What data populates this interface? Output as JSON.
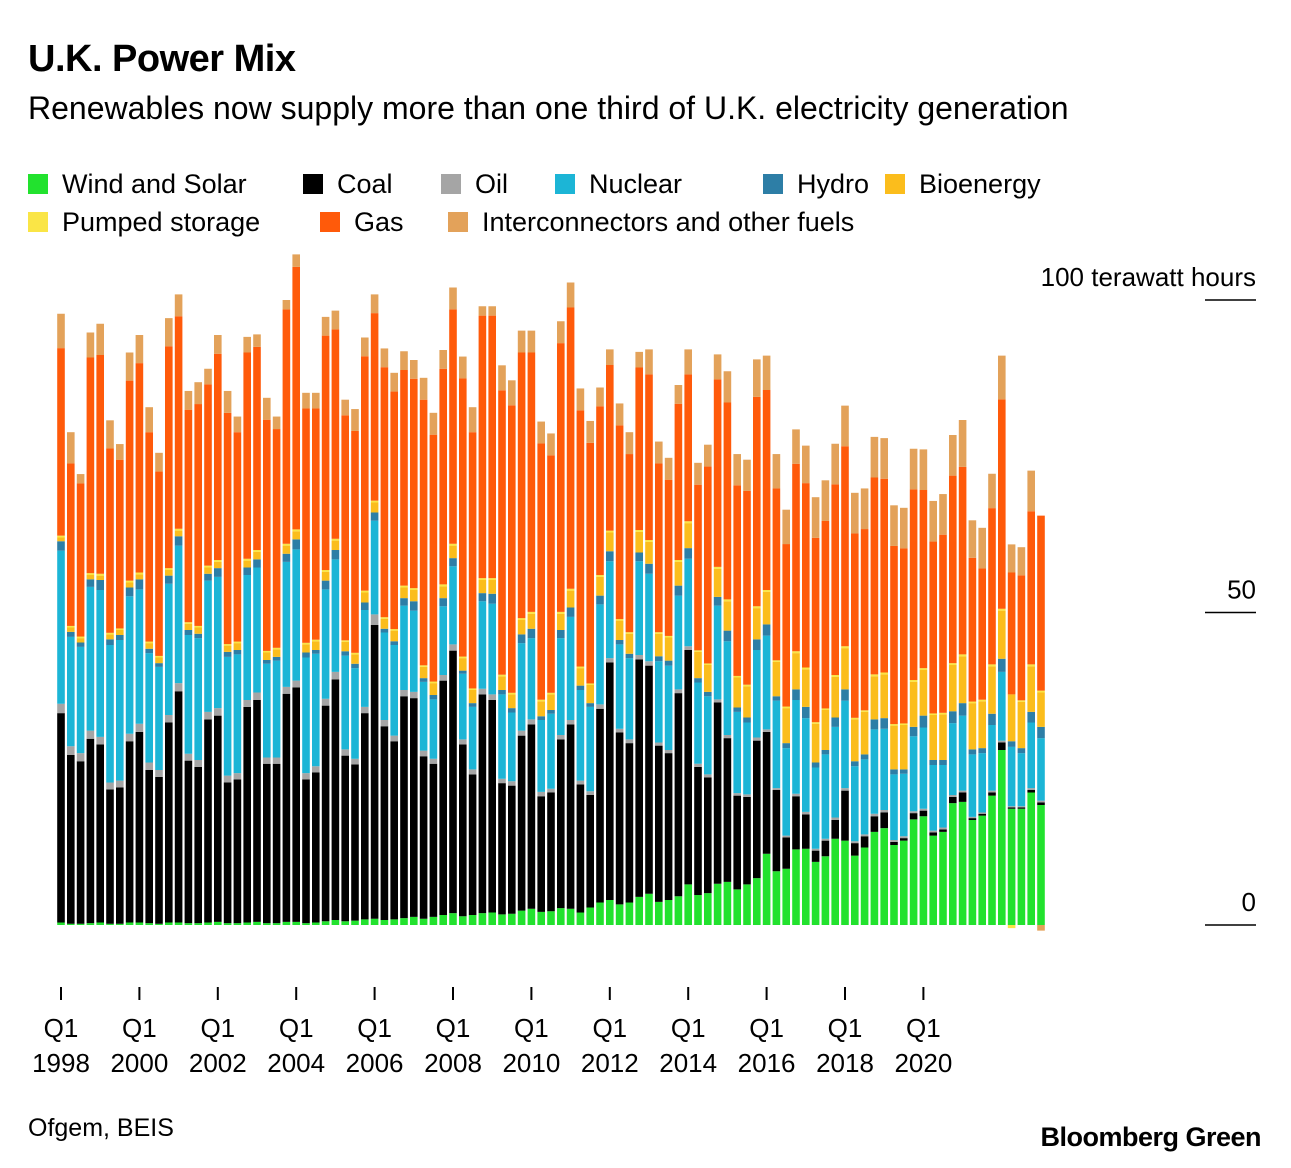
{
  "header": {
    "title": "U.K. Power Mix",
    "subtitle": "Renewables now supply more than one third of U.K. electricity generation"
  },
  "footer": {
    "source": "Ofgem, BEIS",
    "brand": "Bloomberg Green"
  },
  "colors": {
    "wind_solar": "#22e22e",
    "coal": "#000000",
    "oil": "#a5a5a5",
    "nuclear": "#1cb5d6",
    "hydro": "#2d7ea6",
    "bioenergy": "#fbbd1c",
    "pumped": "#fae546",
    "gas": "#ff5a0a",
    "interconnectors": "#e3a25a"
  },
  "chart_data": {
    "type": "bar",
    "stacked": true,
    "x_start": "1998 Q1",
    "x_tick_labels": [
      [
        "Q1",
        "1998"
      ],
      [
        "Q1",
        "2000"
      ],
      [
        "Q1",
        "2002"
      ],
      [
        "Q1",
        "2004"
      ],
      [
        "Q1",
        "2006"
      ],
      [
        "Q1",
        "2008"
      ],
      [
        "Q1",
        "2010"
      ],
      [
        "Q1",
        "2012"
      ],
      [
        "Q1",
        "2014"
      ],
      [
        "Q1",
        "2016"
      ],
      [
        "Q1",
        "2018"
      ],
      [
        "Q1",
        "2020"
      ]
    ],
    "y_ticks": [
      {
        "value": 100,
        "label": "100 terawatt hours"
      },
      {
        "value": 50,
        "label": "50"
      },
      {
        "value": 0,
        "label": "0"
      }
    ],
    "ylim": [
      -2,
      107
    ],
    "legend_position": "top",
    "legend": [
      [
        "Wind and Solar",
        "Coal",
        "Oil",
        "Nuclear",
        "Hydro",
        "Bioenergy"
      ],
      [
        "Pumped storage",
        "Gas",
        "Interconnectors and other fuels"
      ]
    ],
    "series": [
      {
        "name": "Wind and Solar",
        "color": "#22e22e",
        "values": [
          0.4,
          0.2,
          0.2,
          0.3,
          0.4,
          0.2,
          0.2,
          0.4,
          0.4,
          0.3,
          0.2,
          0.4,
          0.4,
          0.3,
          0.3,
          0.4,
          0.5,
          0.3,
          0.3,
          0.4,
          0.5,
          0.3,
          0.3,
          0.5,
          0.5,
          0.3,
          0.4,
          0.6,
          0.8,
          0.6,
          0.7,
          0.9,
          1.0,
          0.8,
          0.9,
          1.1,
          1.3,
          1.0,
          1.3,
          1.6,
          1.9,
          1.4,
          1.6,
          1.9,
          2.0,
          1.7,
          1.8,
          2.3,
          2.6,
          2.1,
          2.2,
          2.7,
          2.6,
          2.0,
          2.8,
          3.6,
          4.0,
          3.3,
          3.6,
          4.5,
          5.0,
          3.7,
          4.0,
          4.6,
          6.5,
          4.8,
          5.1,
          6.6,
          6.9,
          5.7,
          6.5,
          7.5,
          11.4,
          8.6,
          9.0,
          12.1,
          12.2,
          10.1,
          11.0,
          13.8,
          13.5,
          11.1,
          12.4,
          14.9,
          15.5,
          12.8,
          13.5,
          16.9,
          17.4,
          14.3,
          14.9,
          19.5,
          19.7,
          16.8,
          17.5,
          20.7,
          28.0,
          18.6,
          18.6,
          21.2,
          19.2
        ]
      },
      {
        "name": "Coal",
        "color": "#000000",
        "values": [
          33.5,
          27.0,
          26.0,
          29.5,
          28.5,
          21.5,
          21.8,
          29.0,
          30.5,
          24.5,
          23.5,
          32.0,
          37.0,
          26.0,
          25.0,
          32.5,
          33.0,
          22.5,
          23.0,
          34.5,
          35.5,
          25.5,
          25.5,
          36.5,
          37.5,
          23.0,
          24.0,
          34.5,
          38.5,
          26.5,
          25.0,
          33.0,
          47.0,
          31.0,
          28.5,
          35.5,
          35.0,
          26.0,
          24.5,
          37.5,
          42.0,
          27.5,
          22.5,
          35.0,
          34.0,
          21.0,
          20.5,
          28.0,
          29.5,
          18.5,
          19.0,
          27.0,
          29.5,
          20.5,
          18.0,
          31.0,
          38.0,
          27.5,
          25.5,
          38.0,
          36.5,
          25.0,
          23.5,
          32.5,
          37.5,
          20.5,
          18.5,
          29.0,
          23.0,
          15.0,
          14.0,
          22.0,
          19.5,
          13.0,
          5.0,
          8.5,
          5.5,
          1.8,
          2.5,
          3.0,
          8.0,
          2.0,
          1.8,
          2.5,
          2.5,
          0.5,
          0.4,
          1.0,
          0.9,
          0.5,
          0.4,
          1.0,
          1.5,
          0.3,
          0.3,
          0.5,
          1.2,
          0.2,
          0.2,
          0.4,
          0.4
        ]
      },
      {
        "name": "Oil",
        "color": "#a5a5a5",
        "values": [
          1.5,
          1.4,
          1.3,
          1.3,
          1.2,
          1.1,
          1.1,
          1.2,
          1.3,
          1.2,
          1.1,
          1.2,
          1.3,
          1.1,
          1.1,
          1.2,
          1.2,
          1.1,
          1.0,
          1.1,
          1.2,
          1.0,
          1.0,
          1.1,
          1.1,
          1.0,
          1.0,
          1.1,
          1.2,
          1.0,
          0.9,
          1.0,
          1.7,
          1.0,
          0.9,
          1.0,
          1.0,
          0.9,
          0.8,
          0.9,
          1.0,
          0.8,
          0.8,
          0.9,
          0.9,
          0.7,
          0.7,
          0.8,
          0.8,
          0.7,
          0.6,
          0.7,
          0.7,
          0.6,
          0.6,
          0.7,
          0.7,
          0.6,
          0.6,
          0.7,
          0.7,
          0.5,
          0.5,
          0.6,
          0.6,
          0.5,
          0.5,
          0.5,
          0.5,
          0.4,
          0.4,
          0.5,
          0.4,
          0.3,
          0.3,
          0.4,
          0.4,
          0.3,
          0.3,
          0.4,
          0.4,
          0.3,
          0.3,
          0.4,
          0.4,
          0.3,
          0.3,
          0.3,
          0.3,
          0.3,
          0.3,
          0.3,
          0.3,
          0.2,
          0.2,
          0.3,
          0.3,
          0.2,
          0.2,
          0.3,
          0.3
        ]
      },
      {
        "name": "Nuclear",
        "color": "#1cb5d6",
        "values": [
          24.5,
          17.5,
          17.0,
          23.0,
          23.5,
          22.0,
          22.5,
          22.0,
          21.5,
          17.5,
          16.5,
          21.0,
          22.0,
          19.0,
          19.5,
          21.0,
          21.0,
          19.0,
          19.0,
          20.0,
          20.0,
          15.0,
          15.5,
          20.0,
          21.0,
          18.5,
          18.0,
          17.5,
          18.0,
          15.0,
          14.5,
          15.5,
          15.0,
          14.0,
          14.5,
          13.5,
          13.0,
          11.0,
          9.5,
          11.0,
          12.5,
          10.5,
          10.0,
          14.0,
          14.5,
          13.5,
          11.0,
          14.0,
          13.0,
          11.5,
          12.0,
          15.5,
          16.5,
          14.5,
          13.5,
          16.0,
          15.5,
          13.5,
          13.0,
          15.0,
          14.0,
          13.0,
          13.5,
          15.0,
          14.0,
          13.0,
          12.5,
          15.0,
          15.0,
          13.0,
          11.5,
          14.0,
          15.0,
          14.0,
          14.0,
          15.0,
          15.0,
          13.0,
          13.5,
          14.5,
          14.0,
          12.0,
          12.0,
          13.5,
          13.0,
          10.5,
          10.0,
          12.0,
          13.0,
          10.5,
          10.0,
          11.5,
          12.0,
          10.0,
          9.5,
          10.5,
          11.0,
          9.5,
          8.5,
          10.5,
          10.0
        ]
      },
      {
        "name": "Hydro",
        "color": "#2d7ea6",
        "values": [
          1.5,
          0.8,
          0.7,
          1.2,
          1.6,
          0.9,
          0.8,
          1.4,
          1.6,
          0.7,
          0.6,
          1.3,
          1.5,
          0.8,
          0.7,
          1.1,
          1.4,
          0.8,
          0.7,
          1.2,
          1.3,
          0.6,
          0.6,
          1.3,
          1.6,
          0.8,
          0.6,
          1.4,
          1.5,
          0.7,
          0.7,
          1.2,
          1.3,
          0.6,
          0.6,
          1.2,
          1.5,
          0.6,
          0.7,
          1.3,
          1.3,
          0.5,
          0.6,
          1.3,
          1.6,
          0.7,
          0.7,
          1.4,
          1.5,
          0.6,
          0.6,
          1.3,
          1.5,
          0.7,
          0.6,
          1.4,
          1.6,
          0.7,
          0.7,
          1.4,
          1.6,
          0.8,
          0.8,
          1.6,
          1.7,
          0.7,
          0.7,
          1.4,
          1.7,
          0.7,
          0.8,
          1.7,
          1.8,
          0.7,
          0.8,
          1.7,
          1.8,
          0.8,
          0.7,
          1.5,
          1.8,
          0.8,
          0.8,
          1.6,
          1.7,
          0.8,
          0.7,
          1.5,
          1.9,
          0.8,
          0.8,
          1.9,
          2.0,
          0.8,
          0.8,
          1.8,
          2.1,
          0.9,
          0.8,
          1.7,
          1.8
        ]
      },
      {
        "name": "Bioenergy",
        "color": "#fbbd1c",
        "values": [
          0.6,
          0.7,
          0.7,
          0.7,
          0.7,
          0.8,
          0.8,
          0.8,
          0.8,
          0.9,
          0.9,
          0.9,
          0.9,
          1.0,
          1.0,
          1.0,
          1.0,
          1.0,
          1.1,
          1.1,
          1.2,
          1.2,
          1.2,
          1.3,
          1.3,
          1.3,
          1.4,
          1.4,
          1.5,
          1.5,
          1.5,
          1.6,
          1.6,
          1.6,
          1.7,
          1.7,
          1.8,
          1.8,
          1.9,
          1.9,
          2.0,
          2.0,
          2.1,
          2.1,
          2.2,
          2.2,
          2.2,
          2.3,
          2.4,
          2.4,
          2.5,
          2.6,
          2.7,
          2.8,
          2.9,
          3.0,
          3.0,
          3.1,
          3.2,
          3.3,
          3.5,
          3.6,
          3.7,
          3.8,
          4.0,
          4.2,
          4.3,
          4.5,
          4.7,
          4.8,
          5.0,
          5.0,
          5.2,
          5.5,
          5.6,
          5.8,
          6.0,
          6.2,
          6.4,
          6.5,
          6.6,
          6.7,
          6.8,
          6.9,
          7.0,
          7.0,
          7.1,
          7.2,
          7.3,
          7.2,
          7.3,
          7.4,
          7.5,
          7.4,
          7.5,
          7.6,
          7.7,
          7.5,
          7.4,
          7.3,
          5.5
        ]
      },
      {
        "name": "Pumped storage",
        "color": "#fae546",
        "values": [
          0.3,
          0.25,
          0.25,
          0.3,
          0.3,
          0.25,
          0.25,
          0.3,
          0.3,
          0.25,
          0.25,
          0.3,
          0.3,
          0.25,
          0.25,
          0.3,
          0.3,
          0.25,
          0.25,
          0.3,
          0.3,
          0.25,
          0.25,
          0.3,
          0.3,
          0.25,
          0.25,
          0.3,
          0.3,
          0.25,
          0.25,
          0.3,
          0.3,
          0.25,
          0.25,
          0.3,
          0.3,
          0.25,
          0.25,
          0.3,
          0.3,
          0.25,
          0.25,
          0.3,
          0.3,
          0.25,
          0.25,
          0.3,
          0.3,
          0.25,
          0.25,
          0.3,
          0.3,
          0.25,
          0.25,
          0.3,
          0.3,
          0.25,
          0.25,
          0.3,
          0.3,
          0.25,
          0.25,
          0.3,
          0.3,
          0.25,
          0.25,
          0.3,
          0.3,
          0.25,
          0.25,
          0.3,
          0.3,
          0.25,
          0.25,
          0.3,
          0.3,
          0.25,
          0.25,
          0.3,
          0.3,
          0.25,
          0.25,
          0.3,
          0.3,
          0.25,
          0.25,
          0.3,
          0.3,
          0.25,
          0.25,
          0.3,
          0.3,
          0.25,
          0.25,
          0.3,
          0.3,
          -0.5,
          0.25,
          0.3,
          0.3
        ]
      },
      {
        "name": "Gas",
        "color": "#ff5a0a",
        "values": [
          30.0,
          26.0,
          24.5,
          34.5,
          35.0,
          29.5,
          27.0,
          32.0,
          33.5,
          33.5,
          29.5,
          35.5,
          34.0,
          34.0,
          35.5,
          29.0,
          33.0,
          37.0,
          33.5,
          33.0,
          32.5,
          37.0,
          35.0,
          37.5,
          42.0,
          37.5,
          37.0,
          37.5,
          33.5,
          36.0,
          35.5,
          37.5,
          30.0,
          40.0,
          38.0,
          34.5,
          33.5,
          42.5,
          39.5,
          34.5,
          37.5,
          44.5,
          41.0,
          42.0,
          42.0,
          45.5,
          46.0,
          42.5,
          41.5,
          41.0,
          38.0,
          43.0,
          45.0,
          41.0,
          38.5,
          27.0,
          26.5,
          31.0,
          28.5,
          26.0,
          26.5,
          27.0,
          25.0,
          25.0,
          23.5,
          26.5,
          31.5,
          30.0,
          31.5,
          30.5,
          31.0,
          33.5,
          32.0,
          27.5,
          26.0,
          30.0,
          29.5,
          29.5,
          30.0,
          30.5,
          32.0,
          29.5,
          29.0,
          31.5,
          31.0,
          28.5,
          28.0,
          30.5,
          28.5,
          27.5,
          28.5,
          30.0,
          30.0,
          23.0,
          21.0,
          25.0,
          33.5,
          19.5,
          20.0,
          24.5,
          28.0
        ]
      },
      {
        "name": "Interconnectors and other fuels",
        "color": "#e3a25a",
        "values": [
          5.5,
          5.0,
          1.5,
          4.0,
          5.0,
          4.5,
          2.5,
          4.5,
          4.5,
          4.0,
          3.0,
          4.5,
          3.5,
          3.0,
          3.5,
          2.5,
          3.0,
          3.5,
          2.5,
          2.5,
          2.0,
          3.5,
          2.0,
          1.5,
          2.0,
          2.5,
          2.5,
          3.0,
          3.0,
          2.5,
          3.5,
          3.0,
          3.0,
          3.0,
          3.0,
          3.0,
          3.0,
          3.5,
          3.5,
          3.0,
          3.5,
          3.5,
          4.0,
          1.5,
          1.5,
          4.0,
          4.0,
          3.5,
          3.5,
          3.5,
          3.5,
          3.5,
          4.0,
          3.5,
          3.5,
          3.0,
          2.5,
          3.5,
          3.5,
          2.5,
          4.0,
          3.5,
          3.5,
          3.0,
          4.0,
          3.5,
          3.5,
          4.0,
          5.0,
          5.0,
          5.0,
          6.0,
          5.5,
          5.5,
          5.5,
          5.5,
          6.0,
          6.5,
          6.5,
          6.5,
          6.5,
          6.5,
          6.5,
          6.5,
          6.5,
          6.5,
          6.5,
          6.5,
          6.5,
          6.5,
          6.5,
          6.5,
          7.5,
          6.0,
          6.5,
          5.5,
          7.0,
          4.5,
          4.5,
          6.5,
          -0.9
        ]
      }
    ]
  }
}
